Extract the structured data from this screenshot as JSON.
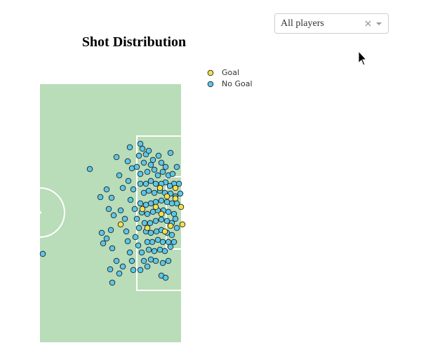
{
  "dropdown": {
    "value": "All players"
  },
  "chart_data": {
    "type": "scatter",
    "title": "Shot Distribution",
    "xlim": [
      0,
      201
    ],
    "ylim": [
      0,
      368
    ],
    "series": [
      {
        "name": "No Goal",
        "color": "#5bc8e8",
        "x": [
          71,
          4,
          86,
          95,
          98,
          102,
          105,
          88,
          90,
          95,
          101,
          103,
          100,
          103,
          109,
          113,
          118,
          109,
          113,
          118,
          115,
          121,
          123,
          125,
          128,
          131,
          133,
          143,
          128,
          125,
          131,
          126,
          133,
          129,
          135,
          138,
          141,
          136,
          140,
          145,
          148,
          153,
          158,
          165,
          173,
          179,
          175,
          183,
          143,
          146,
          141,
          151,
          155,
          186,
          148,
          138,
          158,
          163,
          168,
          175,
          183,
          189,
          195,
          198,
          191,
          185,
          179,
          173,
          165,
          158,
          151,
          143,
          148,
          155,
          163,
          171,
          178,
          186,
          193,
          200,
          195,
          188,
          181,
          173,
          165,
          158,
          151,
          143,
          145,
          153,
          161,
          168,
          176,
          183,
          191,
          188,
          181,
          173,
          165,
          157,
          149,
          151,
          158,
          166,
          173,
          181,
          188,
          183,
          175,
          168,
          160,
          153,
          155,
          163,
          171,
          178,
          186,
          191,
          195,
          193,
          169,
          161,
          153,
          143,
          173,
          179
        ],
        "y": [
          247,
          126,
          207,
          218,
          190,
          206,
          181,
          156,
          141,
          148,
          160,
          134,
          104,
          85,
          116,
          98,
          108,
          264,
          238,
          220,
          188,
          176,
          158,
          144,
          128,
          116,
          103,
          103,
          278,
          258,
          248,
          230,
          218,
          203,
          190,
          176,
          163,
          150,
          138,
          128,
          116,
          108,
          118,
          116,
          95,
          92,
          113,
          116,
          283,
          276,
          266,
          268,
          273,
          270,
          256,
          250,
          253,
          246,
          238,
          243,
          238,
          240,
          250,
          226,
          226,
          223,
          228,
          226,
          226,
          230,
          226,
          226,
          213,
          216,
          213,
          216,
          213,
          212,
          208,
          212,
          198,
          198,
          200,
          202,
          200,
          198,
          196,
          198,
          185,
          183,
          186,
          188,
          188,
          186,
          183,
          170,
          173,
          175,
          173,
          170,
          170,
          158,
          156,
          158,
          160,
          156,
          153,
          143,
          143,
          146,
          143,
          143,
          132,
          130,
          132,
          130,
          136,
          143,
          163,
          176,
          266,
          260,
          243,
          240,
          256,
          250
        ]
      },
      {
        "name": "Goal",
        "color": "#f2e14c",
        "x": [
          193,
          201,
          193,
          203,
          146,
          178,
          181,
          173,
          171,
          153,
          186,
          165,
          115
        ],
        "y": [
          205,
          193,
          220,
          168,
          190,
          158,
          208,
          183,
          220,
          163,
          166,
          193,
          168
        ]
      }
    ]
  }
}
